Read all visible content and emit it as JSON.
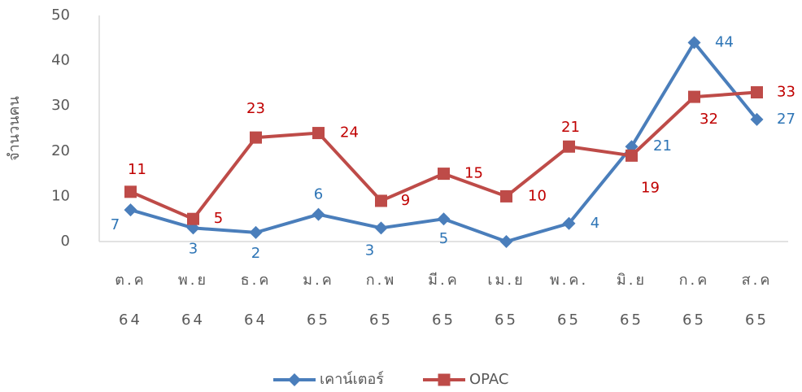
{
  "chart_data": {
    "type": "line",
    "ylabel": "จำนวนคน",
    "categories": [
      [
        "ต.ค",
        "64"
      ],
      [
        "พ.ย",
        "64"
      ],
      [
        "ธ.ค",
        "64"
      ],
      [
        "ม.ค",
        "65"
      ],
      [
        "ก.พ",
        "65"
      ],
      [
        "มี.ค",
        "65"
      ],
      [
        "เม.ย",
        "65"
      ],
      [
        "พ.ค.",
        "65"
      ],
      [
        "มิ.ย",
        "65"
      ],
      [
        "ก.ค",
        "65"
      ],
      [
        "ส.ค",
        "65"
      ]
    ],
    "series": [
      {
        "name": "เคาน์เตอร์",
        "color": "#4a7ebb",
        "marker": "diamond",
        "values": [
          7,
          3,
          2,
          6,
          3,
          5,
          0,
          4,
          21,
          44,
          27
        ],
        "value_labels": [
          "7",
          "3",
          "2",
          "6",
          "3",
          "5",
          null,
          "4",
          "21",
          "44",
          "27"
        ],
        "label_color": "#2e75b6"
      },
      {
        "name": "OPAC",
        "color": "#be4b48",
        "marker": "square",
        "values": [
          11,
          5,
          23,
          24,
          9,
          15,
          10,
          21,
          19,
          32,
          33
        ],
        "label_color": "#c00000"
      }
    ],
    "ylim": [
      0,
      50
    ],
    "yticks": [
      0,
      10,
      20,
      30,
      40,
      50
    ],
    "grid": false,
    "legend": "bottom"
  }
}
